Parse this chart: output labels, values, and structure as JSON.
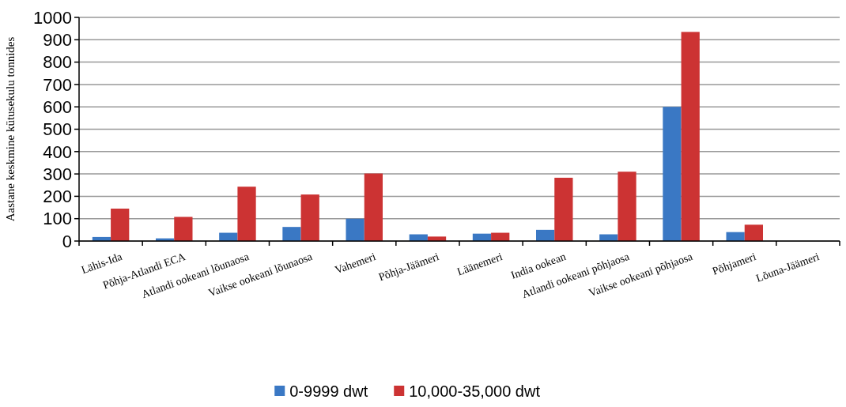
{
  "chart_data": {
    "type": "bar",
    "ylabel": "Aastane keskmine kütusekulu tonnides",
    "categories": [
      "Lähis-Ida",
      "Põhja-Atlandi ECA",
      "Atlandi ookeani lõunaosa",
      "Vaikse ookeani lõunaosa",
      "Vahemeri",
      "Põhja-Jäämeri",
      "Läänemeri",
      "India ookean",
      "Atlandi ookeani põhjaosa",
      "Vaikse ookeani põhjaosa",
      "Põhjameri",
      "Lõuna-Jäämeri"
    ],
    "series": [
      {
        "name": "0-9999 dwt",
        "color": "#3a78c4",
        "values": [
          18,
          12,
          37,
          63,
          100,
          30,
          33,
          50,
          30,
          600,
          40,
          0
        ]
      },
      {
        "name": "10,000-35,000 dwt",
        "color": "#cc3333",
        "values": [
          145,
          108,
          243,
          208,
          302,
          20,
          37,
          283,
          310,
          935,
          73,
          0
        ]
      }
    ],
    "ylim": [
      0,
      1000
    ],
    "yticks": [
      0,
      100,
      200,
      300,
      400,
      500,
      600,
      700,
      800,
      900,
      1000
    ],
    "grid": "y",
    "legend": "bottom"
  }
}
